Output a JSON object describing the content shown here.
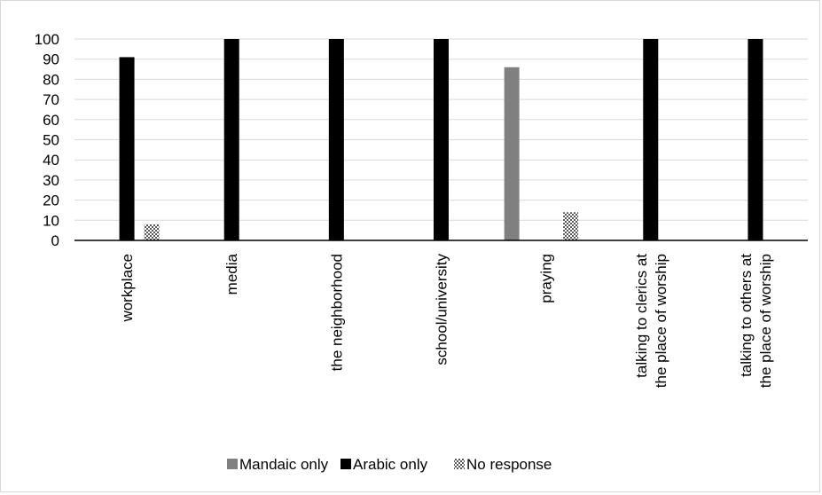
{
  "chart_data": {
    "type": "bar",
    "title": "",
    "xlabel": "",
    "ylabel": "",
    "ylim": [
      0,
      100
    ],
    "yticks": [
      0,
      10,
      20,
      30,
      40,
      50,
      60,
      70,
      80,
      90,
      100
    ],
    "grid": true,
    "legend_position": "bottom",
    "categories": [
      [
        "workplace"
      ],
      [
        "media"
      ],
      [
        "the neighborhood"
      ],
      [
        "school/university"
      ],
      [
        "praying"
      ],
      [
        "talking to clerics at",
        "the place of worship"
      ],
      [
        "talking to others at",
        "the place of worship"
      ]
    ],
    "series": [
      {
        "name": "Mandaic only",
        "color": "#808080",
        "pattern": "solid",
        "values": [
          0,
          0,
          0,
          0,
          86,
          0,
          0
        ]
      },
      {
        "name": "Arabic only",
        "color": "#000000",
        "pattern": "solid",
        "values": [
          91,
          100,
          100,
          100,
          0,
          100,
          100
        ]
      },
      {
        "name": "No response",
        "color": "#595959",
        "pattern": "checker",
        "values": [
          8,
          0,
          0,
          0,
          14,
          0,
          0
        ]
      }
    ]
  }
}
